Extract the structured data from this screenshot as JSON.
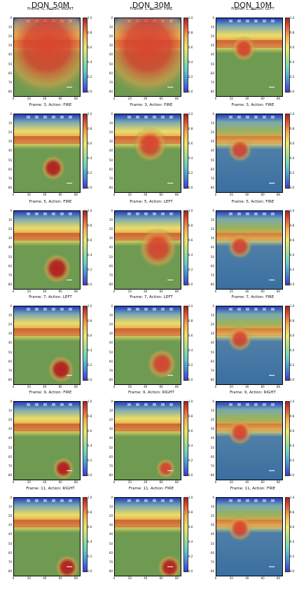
{
  "columns": [
    "DQN_50M",
    "DQN_30M",
    "DQN_10M"
  ],
  "panels": [
    [
      "Frame: 1, Action: RIGHT",
      "Frame: 1, Action: FIRE",
      "Frame: 1, Action: LEFT"
    ],
    [
      "Frame: 3, Action: FIRE",
      "Frame: 3, Action: FIRE",
      "Frame: 3, Action: FIRE"
    ],
    [
      "Frame: 5, Action: FIRE",
      "Frame: 5, Action: LEFT",
      "Frame: 5, Action: FIRE"
    ],
    [
      "Frame: 7, Action: LEFT",
      "Frame: 7, Action: LEFT",
      "Frame: 7, Action: FIRE"
    ],
    [
      "Frame: 9, Action: FIRE",
      "Frame: 9, Action: RIGHT",
      "Frame: 9, Action: RIGHT"
    ],
    [
      "Frame: 11, Action: RIGHT",
      "Frame: 11, Action: FIRE",
      "Frame: 11, Action: FIRE"
    ]
  ],
  "chart_data": {
    "type": "heatmap",
    "x_ticks": [
      "0",
      "20",
      "40",
      "60",
      "80"
    ],
    "y_ticks": [
      "0",
      "10",
      "20",
      "30",
      "40",
      "50",
      "60",
      "70",
      "80"
    ],
    "colorbar_ticks": [
      "0.0",
      "0.2",
      "0.4",
      "0.6",
      "0.8",
      "1.0"
    ],
    "colorbar_range": [
      0.0,
      1.0
    ],
    "image_extent": {
      "x": [
        0,
        84
      ],
      "y": [
        0,
        84
      ]
    },
    "hotspots": [
      [
        {
          "x": 42,
          "y": 30,
          "r": 40,
          "v": 0.85
        },
        {
          "x": 42,
          "y": 30,
          "r": 40,
          "v": 0.85
        },
        {
          "x": 35,
          "y": 33,
          "r": 10,
          "v": 0.9
        }
      ],
      [
        {
          "x": 50,
          "y": 58,
          "r": 10,
          "v": 0.95
        },
        {
          "x": 45,
          "y": 33,
          "r": 14,
          "v": 0.85
        },
        {
          "x": 30,
          "y": 38,
          "r": 10,
          "v": 0.85
        }
      ],
      [
        {
          "x": 55,
          "y": 62,
          "r": 12,
          "v": 0.95
        },
        {
          "x": 55,
          "y": 40,
          "r": 16,
          "v": 0.8
        },
        {
          "x": 30,
          "y": 38,
          "r": 10,
          "v": 0.8
        }
      ],
      [
        {
          "x": 60,
          "y": 68,
          "r": 11,
          "v": 0.95
        },
        {
          "x": 60,
          "y": 62,
          "r": 12,
          "v": 0.9
        },
        {
          "x": 30,
          "y": 35,
          "r": 10,
          "v": 0.85
        }
      ],
      [
        {
          "x": 63,
          "y": 72,
          "r": 9,
          "v": 0.95
        },
        {
          "x": 65,
          "y": 72,
          "r": 8,
          "v": 0.9
        },
        {
          "x": 30,
          "y": 33,
          "r": 10,
          "v": 0.8
        }
      ],
      [
        {
          "x": 68,
          "y": 75,
          "r": 10,
          "v": 0.95
        },
        {
          "x": 70,
          "y": 75,
          "r": 10,
          "v": 0.95
        },
        {
          "x": 30,
          "y": 33,
          "r": 10,
          "v": 0.8
        }
      ]
    ]
  },
  "colors": {
    "hot": "#b81d1d",
    "warm": "#e3a54a",
    "band": "#eedd66",
    "field": "#6f9a52",
    "cold": "#1f3dbd",
    "bricks": "#7aa8b0"
  }
}
